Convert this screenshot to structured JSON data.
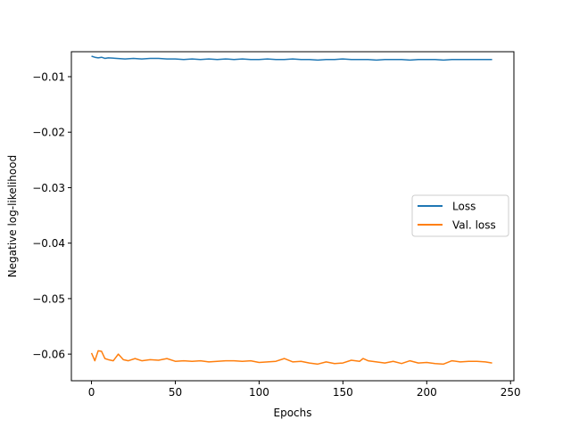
{
  "chart_data": {
    "type": "line",
    "title": "",
    "xlabel": "Epochs",
    "ylabel": "Negative log-likelihood",
    "xlim": [
      -12,
      252
    ],
    "ylim": [
      -0.0648,
      -0.0055
    ],
    "xticks": [
      0,
      50,
      100,
      150,
      200,
      250
    ],
    "xtick_labels": [
      "0",
      "50",
      "100",
      "150",
      "200",
      "250"
    ],
    "yticks": [
      -0.06,
      -0.05,
      -0.04,
      -0.03,
      -0.02,
      -0.01
    ],
    "ytick_labels": [
      "−0.06",
      "−0.05",
      "−0.04",
      "−0.03",
      "−0.02",
      "−0.01"
    ],
    "grid": false,
    "legend_position": "center-right",
    "series": [
      {
        "name": "Loss",
        "color": "#1f77b4",
        "x": [
          0,
          2,
          4,
          6,
          8,
          10,
          15,
          20,
          25,
          30,
          35,
          40,
          45,
          50,
          55,
          60,
          65,
          70,
          75,
          80,
          85,
          90,
          95,
          100,
          105,
          110,
          115,
          120,
          125,
          130,
          135,
          140,
          145,
          150,
          155,
          160,
          165,
          170,
          175,
          180,
          185,
          190,
          195,
          200,
          205,
          210,
          215,
          220,
          225,
          230,
          235,
          239
        ],
        "y": [
          -0.0063,
          -0.0065,
          -0.0066,
          -0.0065,
          -0.0067,
          -0.0066,
          -0.0067,
          -0.0068,
          -0.0067,
          -0.0068,
          -0.0067,
          -0.0067,
          -0.0068,
          -0.0068,
          -0.0069,
          -0.0068,
          -0.0069,
          -0.0068,
          -0.0069,
          -0.0068,
          -0.0069,
          -0.0068,
          -0.0069,
          -0.0069,
          -0.0068,
          -0.0069,
          -0.0069,
          -0.0068,
          -0.0069,
          -0.0069,
          -0.007,
          -0.0069,
          -0.0069,
          -0.0068,
          -0.0069,
          -0.0069,
          -0.0069,
          -0.007,
          -0.0069,
          -0.0069,
          -0.0069,
          -0.007,
          -0.0069,
          -0.0069,
          -0.0069,
          -0.007,
          -0.0069,
          -0.0069,
          -0.0069,
          -0.0069,
          -0.0069,
          -0.0069
        ]
      },
      {
        "name": "Val. loss",
        "color": "#ff7f0e",
        "x": [
          0,
          2,
          4,
          6,
          8,
          10,
          13,
          16,
          19,
          22,
          26,
          30,
          35,
          40,
          45,
          50,
          55,
          60,
          65,
          70,
          75,
          80,
          85,
          90,
          95,
          100,
          105,
          110,
          115,
          120,
          125,
          130,
          135,
          140,
          145,
          150,
          155,
          160,
          162,
          165,
          170,
          175,
          180,
          185,
          190,
          195,
          200,
          205,
          210,
          215,
          220,
          225,
          230,
          235,
          239
        ],
        "y": [
          -0.0598,
          -0.0612,
          -0.0594,
          -0.0595,
          -0.0608,
          -0.061,
          -0.0612,
          -0.06,
          -0.061,
          -0.0612,
          -0.0608,
          -0.0612,
          -0.061,
          -0.0611,
          -0.0608,
          -0.0613,
          -0.0612,
          -0.0613,
          -0.0612,
          -0.0614,
          -0.0613,
          -0.0612,
          -0.0612,
          -0.0613,
          -0.0612,
          -0.0615,
          -0.0614,
          -0.0613,
          -0.0608,
          -0.0614,
          -0.0613,
          -0.0616,
          -0.0618,
          -0.0614,
          -0.0617,
          -0.0616,
          -0.0611,
          -0.0613,
          -0.0608,
          -0.0612,
          -0.0614,
          -0.0616,
          -0.0613,
          -0.0617,
          -0.0612,
          -0.0616,
          -0.0615,
          -0.0617,
          -0.0618,
          -0.0612,
          -0.0614,
          -0.0613,
          -0.0613,
          -0.0614,
          -0.0616
        ]
      }
    ]
  }
}
